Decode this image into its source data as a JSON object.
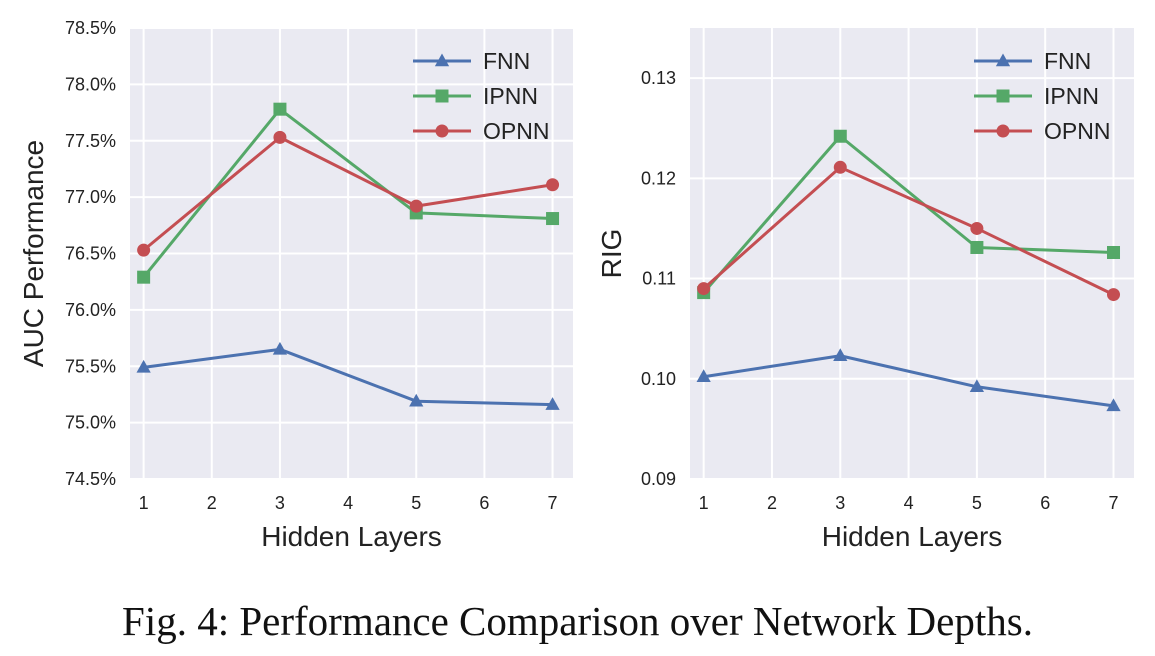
{
  "caption": "Fig. 4: Performance Comparison over Network Depths.",
  "colors": {
    "plot_background": "#EAEAF2",
    "grid": "#FFFFFF",
    "FNN": "#4C72B0",
    "IPNN": "#55A868",
    "OPNN": "#C44E52"
  },
  "chart_data": [
    {
      "type": "line",
      "title": "",
      "xlabel": "Hidden Layers",
      "ylabel": "AUC Performance",
      "x": [
        1,
        2,
        3,
        4,
        5,
        6,
        7
      ],
      "xlim": [
        0.8,
        7.3
      ],
      "ylim": [
        74.5,
        78.5
      ],
      "xticks": [
        1,
        2,
        3,
        4,
        5,
        6,
        7
      ],
      "xtick_labels": [
        "1",
        "2",
        "3",
        "4",
        "5",
        "6",
        "7"
      ],
      "yticks": [
        74.5,
        75.0,
        75.5,
        76.0,
        76.5,
        77.0,
        77.5,
        78.0,
        78.5
      ],
      "ytick_labels": [
        "74.5%",
        "75.0%",
        "75.5%",
        "76.0%",
        "76.5%",
        "77.0%",
        "77.5%",
        "78.0%",
        "78.5%"
      ],
      "grid": true,
      "legend_position": "top-right",
      "series": [
        {
          "name": "FNN",
          "marker": "triangle",
          "x": [
            1,
            3,
            5,
            7
          ],
          "values": [
            75.49,
            75.65,
            75.19,
            75.16
          ]
        },
        {
          "name": "IPNN",
          "marker": "square",
          "x": [
            1,
            3,
            5,
            7
          ],
          "values": [
            76.29,
            77.78,
            76.86,
            76.81
          ]
        },
        {
          "name": "OPNN",
          "marker": "circle",
          "x": [
            1,
            3,
            5,
            7
          ],
          "values": [
            76.53,
            77.53,
            76.92,
            77.11
          ]
        }
      ]
    },
    {
      "type": "line",
      "title": "",
      "xlabel": "Hidden Layers",
      "ylabel": "RIG",
      "x": [
        1,
        2,
        3,
        4,
        5,
        6,
        7
      ],
      "xlim": [
        0.8,
        7.3
      ],
      "ylim": [
        0.09,
        0.135
      ],
      "xticks": [
        1,
        2,
        3,
        4,
        5,
        6,
        7
      ],
      "xtick_labels": [
        "1",
        "2",
        "3",
        "4",
        "5",
        "6",
        "7"
      ],
      "yticks": [
        0.09,
        0.1,
        0.11,
        0.12,
        0.13
      ],
      "ytick_labels": [
        "0.09",
        "0.10",
        "0.11",
        "0.12",
        "0.13"
      ],
      "grid": true,
      "legend_position": "top-right",
      "series": [
        {
          "name": "FNN",
          "marker": "triangle",
          "x": [
            1,
            3,
            5,
            7
          ],
          "values": [
            0.1002,
            0.1023,
            0.0992,
            0.0973
          ]
        },
        {
          "name": "IPNN",
          "marker": "square",
          "x": [
            1,
            3,
            5,
            7
          ],
          "values": [
            0.1086,
            0.1242,
            0.1131,
            0.1126
          ]
        },
        {
          "name": "OPNN",
          "marker": "circle",
          "x": [
            1,
            3,
            5,
            7
          ],
          "values": [
            0.109,
            0.1211,
            0.115,
            0.1084
          ]
        }
      ]
    }
  ]
}
